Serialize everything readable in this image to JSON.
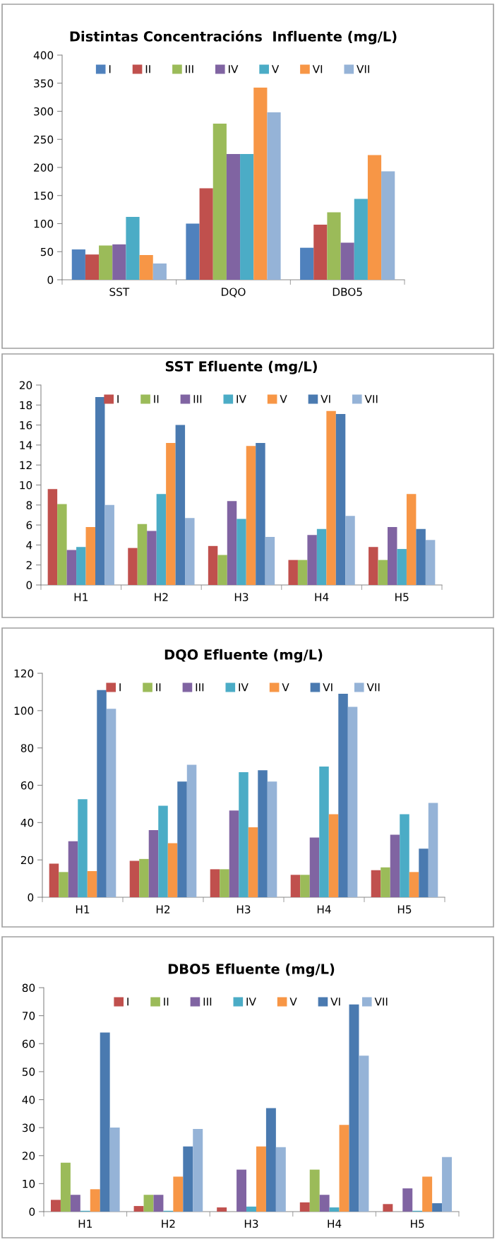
{
  "chart_data": [
    {
      "type": "bar",
      "title": "Distintas Concentracións  Influente (mg/L)",
      "categories": [
        "SST",
        "DQO",
        "DBO5"
      ],
      "ylim": [
        0,
        400
      ],
      "yticks": [
        0,
        50,
        100,
        150,
        200,
        250,
        300,
        350,
        400
      ],
      "legend": "top",
      "series": [
        {
          "name": "I",
          "color": "#4f81bd",
          "values": [
            54,
            100,
            57
          ]
        },
        {
          "name": "II",
          "color": "#c0504d",
          "values": [
            45,
            163,
            98
          ]
        },
        {
          "name": "III",
          "color": "#9bbb59",
          "values": [
            61,
            278,
            120
          ]
        },
        {
          "name": "IV",
          "color": "#8064a2",
          "values": [
            63,
            224,
            66
          ]
        },
        {
          "name": "V",
          "color": "#4bacc6",
          "values": [
            112,
            224,
            144
          ]
        },
        {
          "name": "VI",
          "color": "#f79646",
          "values": [
            44,
            342,
            222
          ]
        },
        {
          "name": "VII",
          "color": "#95b3d7",
          "values": [
            29,
            298,
            193
          ]
        }
      ]
    },
    {
      "type": "bar",
      "title": "SST Efluente (mg/L)",
      "categories": [
        "H1",
        "H2",
        "H3",
        "H4",
        "H5"
      ],
      "ylim": [
        0,
        20
      ],
      "yticks": [
        0,
        2,
        4,
        6,
        8,
        10,
        12,
        14,
        16,
        18,
        20
      ],
      "legend": "top",
      "series": [
        {
          "name": "I",
          "color": "#c0504d",
          "values": [
            9.6,
            3.7,
            3.9,
            2.5,
            3.8
          ]
        },
        {
          "name": "II",
          "color": "#9bbb59",
          "values": [
            8.1,
            6.1,
            3.0,
            2.5,
            2.5
          ]
        },
        {
          "name": "III",
          "color": "#8064a2",
          "values": [
            3.5,
            5.4,
            8.4,
            5.0,
            5.8
          ]
        },
        {
          "name": "IV",
          "color": "#4bacc6",
          "values": [
            3.8,
            9.1,
            6.6,
            5.6,
            3.6
          ]
        },
        {
          "name": "V",
          "color": "#f79646",
          "values": [
            5.8,
            14.2,
            13.9,
            17.4,
            9.1
          ]
        },
        {
          "name": "VI",
          "color": "#4a7ab0",
          "values": [
            18.8,
            16.0,
            14.2,
            17.1,
            5.6
          ]
        },
        {
          "name": "VII",
          "color": "#95b3d7",
          "values": [
            8.0,
            6.7,
            4.8,
            6.9,
            4.5
          ]
        }
      ]
    },
    {
      "type": "bar",
      "title": "DQO Efluente (mg/L)",
      "categories": [
        "H1",
        "H2",
        "H3",
        "H4",
        "H5"
      ],
      "ylim": [
        0,
        120
      ],
      "yticks": [
        0,
        20,
        40,
        60,
        80,
        100,
        120
      ],
      "legend": "top",
      "series": [
        {
          "name": "I",
          "color": "#c0504d",
          "values": [
            18,
            19.5,
            15,
            12,
            14.5
          ]
        },
        {
          "name": "II",
          "color": "#9bbb59",
          "values": [
            13.5,
            20.5,
            15,
            12,
            16
          ]
        },
        {
          "name": "III",
          "color": "#8064a2",
          "values": [
            30,
            36,
            46.5,
            32,
            33.5
          ]
        },
        {
          "name": "IV",
          "color": "#4bacc6",
          "values": [
            52.5,
            49,
            67,
            70,
            44.5
          ]
        },
        {
          "name": "V",
          "color": "#f79646",
          "values": [
            14,
            29,
            37.5,
            44.5,
            13.5
          ]
        },
        {
          "name": "VI",
          "color": "#4a7ab0",
          "values": [
            111,
            62,
            68,
            109,
            26
          ]
        },
        {
          "name": "VII",
          "color": "#95b3d7",
          "values": [
            101,
            71,
            62,
            102,
            50.5
          ]
        }
      ]
    },
    {
      "type": "bar",
      "title": "DBO5 Efluente (mg/L)",
      "categories": [
        "H1",
        "H2",
        "H3",
        "H4",
        "H5"
      ],
      "ylim": [
        0,
        80
      ],
      "yticks": [
        0,
        10,
        20,
        30,
        40,
        50,
        60,
        70,
        80
      ],
      "legend": "top",
      "series": [
        {
          "name": "I",
          "color": "#c0504d",
          "values": [
            4.2,
            2,
            1.5,
            3.3,
            2.7
          ]
        },
        {
          "name": "II",
          "color": "#9bbb59",
          "values": [
            17.5,
            6,
            0,
            15,
            0
          ]
        },
        {
          "name": "III",
          "color": "#8064a2",
          "values": [
            6,
            6,
            15,
            6,
            8.3
          ]
        },
        {
          "name": "IV",
          "color": "#4bacc6",
          "values": [
            0.3,
            0.3,
            1.8,
            1.5,
            0.3
          ]
        },
        {
          "name": "V",
          "color": "#f79646",
          "values": [
            8,
            12.5,
            23.3,
            31,
            12.5
          ]
        },
        {
          "name": "VI",
          "color": "#4a7ab0",
          "values": [
            64,
            23.3,
            37,
            74,
            3
          ]
        },
        {
          "name": "VII",
          "color": "#95b3d7",
          "values": [
            30,
            29.5,
            23,
            55.7,
            19.5
          ]
        }
      ]
    }
  ]
}
